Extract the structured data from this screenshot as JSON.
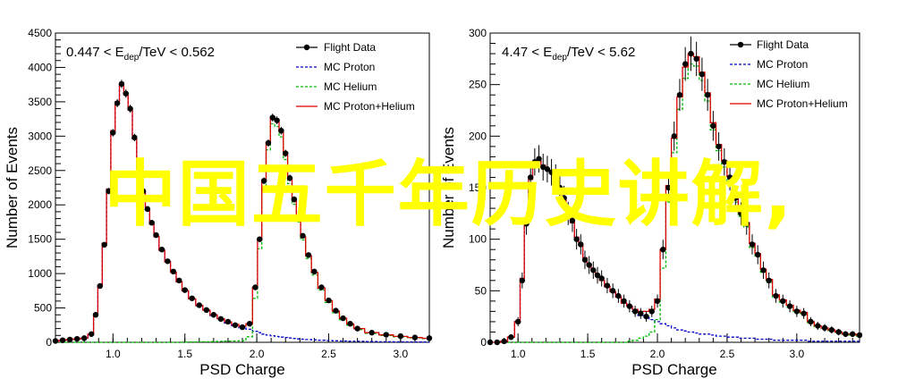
{
  "overlay": {
    "text": "中国五千年历史讲解,",
    "color": "#ffff00"
  },
  "chart_data": [
    {
      "type": "line",
      "annotation": {
        "lo": "0.447",
        "sub": "dep",
        "hi": "0.562"
      },
      "xlabel": "PSD Charge",
      "ylabel": "Number of Events",
      "xlim": [
        0.6,
        3.2
      ],
      "ylim": [
        0,
        4500
      ],
      "xticks": [
        1.0,
        1.5,
        2.0,
        2.5,
        3.0
      ],
      "xtick_labels": [
        "1.0",
        "1.5",
        "2.0",
        "2.5",
        "3.0"
      ],
      "yticks": [
        0,
        500,
        1000,
        1500,
        2000,
        2500,
        3000,
        3500,
        4000,
        4500
      ],
      "ytick_labels": [
        "0",
        "500",
        "1000",
        "1500",
        "2000",
        "2500",
        "3000",
        "3500",
        "4000",
        "4500"
      ],
      "legend_position": "top-right",
      "legend": [
        "Flight Data",
        "MC Proton",
        "MC Helium",
        "MC Proton+Helium"
      ],
      "colors": {
        "data": "#000000",
        "proton": "#0000cc",
        "helium": "#00bb00",
        "sum": "#dd0000"
      },
      "x": [
        0.6,
        0.65,
        0.7,
        0.75,
        0.8,
        0.85,
        0.88,
        0.91,
        0.94,
        0.97,
        1.0,
        1.03,
        1.06,
        1.09,
        1.12,
        1.15,
        1.18,
        1.21,
        1.24,
        1.27,
        1.3,
        1.34,
        1.38,
        1.42,
        1.46,
        1.5,
        1.55,
        1.6,
        1.65,
        1.7,
        1.75,
        1.8,
        1.85,
        1.9,
        1.95,
        1.99,
        2.02,
        2.05,
        2.08,
        2.11,
        2.14,
        2.17,
        2.2,
        2.23,
        2.26,
        2.29,
        2.32,
        2.36,
        2.4,
        2.45,
        2.5,
        2.55,
        2.6,
        2.65,
        2.7,
        2.8,
        2.9,
        3.0,
        3.1,
        3.2
      ],
      "series": [
        {
          "name": "Flight Data",
          "values": [
            20,
            30,
            40,
            50,
            60,
            120,
            400,
            820,
            1420,
            2200,
            3050,
            3480,
            3760,
            3620,
            3400,
            2980,
            2540,
            2200,
            1940,
            1740,
            1560,
            1350,
            1180,
            1030,
            900,
            760,
            640,
            540,
            470,
            400,
            340,
            300,
            250,
            220,
            270,
            800,
            1500,
            2350,
            2900,
            3270,
            3230,
            3080,
            2750,
            2390,
            2080,
            1820,
            1550,
            1270,
            1030,
            800,
            610,
            460,
            350,
            270,
            200,
            140,
            110,
            90,
            70,
            60
          ]
        },
        {
          "name": "MC Proton",
          "values": [
            20,
            30,
            40,
            50,
            60,
            120,
            410,
            830,
            1440,
            2230,
            3080,
            3500,
            3740,
            3600,
            3380,
            2960,
            2530,
            2180,
            1930,
            1720,
            1540,
            1340,
            1170,
            1020,
            880,
            750,
            630,
            530,
            460,
            390,
            330,
            280,
            240,
            210,
            190,
            160,
            140,
            120,
            105,
            95,
            85,
            75,
            70,
            62,
            56,
            50,
            45,
            40,
            35,
            30,
            26,
            22,
            19,
            16,
            14,
            10,
            8,
            6,
            5,
            4
          ]
        },
        {
          "name": "MC Helium",
          "values": [
            0,
            0,
            0,
            0,
            0,
            0,
            0,
            0,
            0,
            0,
            0,
            0,
            0,
            0,
            0,
            0,
            0,
            0,
            0,
            0,
            0,
            0,
            0,
            0,
            0,
            2,
            4,
            6,
            8,
            10,
            14,
            18,
            20,
            25,
            80,
            640,
            1360,
            2230,
            2800,
            3180,
            3140,
            2990,
            2660,
            2310,
            2010,
            1750,
            1490,
            1220,
            980,
            760,
            580,
            430,
            330,
            250,
            185,
            130,
            100,
            80,
            65,
            55
          ]
        },
        {
          "name": "MC Proton+Helium",
          "values": [
            20,
            30,
            40,
            50,
            60,
            120,
            410,
            830,
            1440,
            2230,
            3080,
            3500,
            3740,
            3600,
            3380,
            2960,
            2530,
            2180,
            1930,
            1720,
            1540,
            1340,
            1170,
            1020,
            880,
            752,
            634,
            536,
            468,
            400,
            344,
            298,
            260,
            235,
            270,
            800,
            1500,
            2350,
            2905,
            3275,
            3225,
            3065,
            2730,
            2372,
            2066,
            1800,
            1535,
            1260,
            1015,
            790,
            606,
            452,
            349,
            266,
            199,
            140,
            108,
            86,
            70,
            59
          ]
        }
      ]
    },
    {
      "type": "line",
      "annotation": {
        "lo": "4.47",
        "sub": "dep",
        "hi": "5.62"
      },
      "xlabel": "PSD Charge",
      "ylabel": "Number of Events",
      "xlim": [
        0.8,
        3.45
      ],
      "ylim": [
        0,
        300
      ],
      "xticks": [
        1.0,
        1.5,
        2.0,
        2.5,
        3.0
      ],
      "xtick_labels": [
        "1.0",
        "1.5",
        "2.0",
        "2.5",
        "3.0"
      ],
      "yticks": [
        0,
        50,
        100,
        150,
        200,
        250,
        300
      ],
      "ytick_labels": [
        "0",
        "50",
        "100",
        "150",
        "200",
        "250",
        "300"
      ],
      "legend_position": "top-right",
      "legend": [
        "Flight Data",
        "MC Proton",
        "MC Helium",
        "MC Proton+Helium"
      ],
      "colors": {
        "data": "#000000",
        "proton": "#0000cc",
        "helium": "#00bb00",
        "sum": "#dd0000"
      },
      "x": [
        0.8,
        0.85,
        0.9,
        0.95,
        1.0,
        1.03,
        1.06,
        1.09,
        1.12,
        1.15,
        1.18,
        1.21,
        1.24,
        1.27,
        1.3,
        1.33,
        1.36,
        1.39,
        1.42,
        1.45,
        1.48,
        1.51,
        1.54,
        1.57,
        1.6,
        1.64,
        1.68,
        1.72,
        1.76,
        1.8,
        1.84,
        1.88,
        1.92,
        1.96,
        2.0,
        2.04,
        2.08,
        2.12,
        2.16,
        2.2,
        2.24,
        2.28,
        2.32,
        2.36,
        2.4,
        2.44,
        2.48,
        2.52,
        2.56,
        2.6,
        2.64,
        2.68,
        2.72,
        2.76,
        2.8,
        2.85,
        2.9,
        2.95,
        3.0,
        3.05,
        3.1,
        3.15,
        3.2,
        3.25,
        3.3,
        3.35,
        3.4,
        3.45
      ],
      "series": [
        {
          "name": "Flight Data",
          "values": [
            0,
            0,
            1,
            5,
            20,
            60,
            115,
            160,
            175,
            178,
            170,
            168,
            165,
            160,
            150,
            140,
            125,
            118,
            100,
            95,
            80,
            75,
            70,
            65,
            62,
            55,
            50,
            45,
            40,
            35,
            30,
            28,
            25,
            30,
            40,
            90,
            150,
            200,
            240,
            270,
            280,
            275,
            260,
            240,
            210,
            190,
            175,
            160,
            140,
            125,
            115,
            95,
            85,
            70,
            60,
            45,
            40,
            35,
            30,
            28,
            20,
            16,
            14,
            12,
            10,
            8,
            8,
            7
          ]
        },
        {
          "name": "MC Proton",
          "values": [
            0,
            0,
            1,
            5,
            20,
            62,
            118,
            158,
            172,
            176,
            172,
            168,
            164,
            158,
            150,
            140,
            126,
            116,
            102,
            94,
            82,
            76,
            70,
            64,
            60,
            54,
            49,
            44,
            38,
            34,
            30,
            26,
            24,
            22,
            20,
            18,
            16,
            14,
            12,
            11,
            10,
            9,
            8,
            8,
            7,
            6,
            6,
            5,
            5,
            4,
            4,
            4,
            3,
            3,
            3,
            2,
            2,
            2,
            2,
            2,
            1,
            1,
            1,
            1,
            1,
            1,
            1,
            1
          ]
        },
        {
          "name": "MC Helium",
          "values": [
            0,
            0,
            0,
            0,
            0,
            0,
            0,
            0,
            0,
            0,
            0,
            0,
            0,
            0,
            0,
            0,
            0,
            0,
            0,
            0,
            0,
            0,
            0,
            0,
            0,
            0,
            0,
            0,
            0,
            1,
            2,
            4,
            6,
            10,
            22,
            72,
            136,
            184,
            226,
            256,
            270,
            268,
            254,
            234,
            206,
            186,
            170,
            156,
            136,
            122,
            112,
            92,
            83,
            68,
            58,
            44,
            39,
            34,
            29,
            27,
            19,
            15,
            13,
            11,
            9,
            7,
            7,
            6
          ]
        },
        {
          "name": "MC Proton+Helium",
          "values": [
            0,
            0,
            1,
            5,
            20,
            62,
            118,
            158,
            172,
            176,
            172,
            168,
            164,
            158,
            150,
            140,
            126,
            116,
            102,
            94,
            82,
            76,
            70,
            64,
            60,
            54,
            49,
            44,
            38,
            35,
            32,
            30,
            30,
            32,
            42,
            90,
            152,
            198,
            238,
            267,
            280,
            277,
            262,
            242,
            213,
            192,
            176,
            161,
            141,
            126,
            116,
            96,
            86,
            71,
            61,
            46,
            41,
            36,
            31,
            29,
            20,
            16,
            14,
            12,
            10,
            8,
            8,
            7
          ]
        }
      ]
    }
  ]
}
